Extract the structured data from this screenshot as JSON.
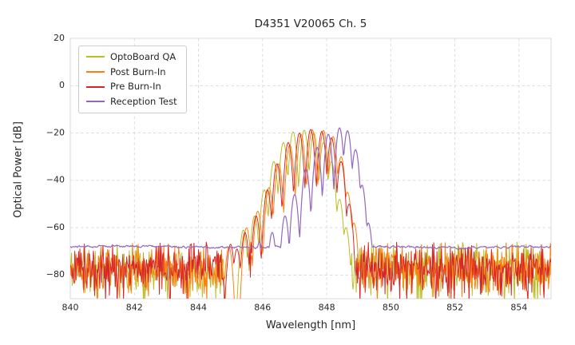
{
  "chart_data": {
    "type": "line",
    "title": "D4351 V20065 Ch. 5",
    "xlabel": "Wavelength [nm]",
    "ylabel": "Optical Power [dB]",
    "xlim": [
      840,
      855
    ],
    "ylim": [
      -90,
      20
    ],
    "xticks": [
      840,
      842,
      844,
      846,
      848,
      850,
      852,
      854
    ],
    "yticks": [
      20,
      0,
      -20,
      -40,
      -60,
      -80
    ],
    "grid": true,
    "grid_color": "#d4d9de",
    "background": "#ffffff",
    "legend_position": "upper-left",
    "sample_step_nm": 0.02,
    "mode_width_coeff_db_per_nm2": 800,
    "quiet_band_nm": [
      844.8,
      845.35
    ],
    "series": [
      {
        "name": "OptoBoard QA",
        "color": "#bcbd22",
        "peak_nm": 847.3,
        "peak_db": -18.8,
        "modes": [
          [
            845.4,
            -61
          ],
          [
            845.75,
            -55
          ],
          [
            846.05,
            -44
          ],
          [
            846.35,
            -32
          ],
          [
            846.65,
            -24
          ],
          [
            846.95,
            -19.5
          ],
          [
            847.3,
            -18.8
          ],
          [
            847.6,
            -20
          ],
          [
            847.9,
            -24
          ],
          [
            848.15,
            -32
          ],
          [
            848.4,
            -48
          ],
          [
            848.6,
            -60
          ]
        ],
        "noise": {
          "type": "spiky",
          "base_db": -77,
          "max_db": -66,
          "amp_db": 14,
          "seed": 11
        }
      },
      {
        "name": "Post Burn-In",
        "color": "#ff7f0e",
        "peak_nm": 847.55,
        "peak_db": -18.6,
        "modes": [
          [
            844.95,
            -68
          ],
          [
            845.5,
            -60
          ],
          [
            845.85,
            -53
          ],
          [
            846.2,
            -43
          ],
          [
            846.5,
            -33
          ],
          [
            846.85,
            -25
          ],
          [
            847.2,
            -20.5
          ],
          [
            847.55,
            -18.6
          ],
          [
            847.9,
            -18.9
          ],
          [
            848.2,
            -21.5
          ],
          [
            848.45,
            -30
          ],
          [
            848.65,
            -45
          ],
          [
            848.85,
            -58
          ]
        ],
        "noise": {
          "type": "spiky",
          "base_db": -77,
          "max_db": -66,
          "amp_db": 14,
          "seed": 22
        }
      },
      {
        "name": "Pre Burn-In",
        "color": "#d62728",
        "peak_nm": 847.5,
        "peak_db": -18.5,
        "modes": [
          [
            845.0,
            -67
          ],
          [
            845.2,
            -69
          ],
          [
            845.45,
            -62
          ],
          [
            845.8,
            -55
          ],
          [
            846.15,
            -44
          ],
          [
            846.45,
            -33
          ],
          [
            846.8,
            -24
          ],
          [
            847.15,
            -20
          ],
          [
            847.5,
            -18.5
          ],
          [
            847.85,
            -19.3
          ],
          [
            848.15,
            -22
          ],
          [
            848.45,
            -32
          ],
          [
            848.7,
            -50
          ]
        ],
        "noise": {
          "type": "spiky",
          "base_db": -77,
          "max_db": -66,
          "amp_db": 14,
          "seed": 33
        }
      },
      {
        "name": "Reception Test",
        "color": "#9467bd",
        "peak_nm": 848.4,
        "peak_db": -17.8,
        "modes": [
          [
            845.9,
            -66
          ],
          [
            846.3,
            -62
          ],
          [
            846.7,
            -55
          ],
          [
            847.0,
            -46
          ],
          [
            847.35,
            -35
          ],
          [
            847.7,
            -26
          ],
          [
            848.05,
            -20.5
          ],
          [
            848.4,
            -17.8
          ],
          [
            848.65,
            -19
          ],
          [
            848.9,
            -27
          ],
          [
            849.1,
            -42
          ],
          [
            849.3,
            -58
          ]
        ],
        "noise": {
          "type": "smooth",
          "base_db": -68.1,
          "amp_db": 1.1,
          "seed": 44
        }
      }
    ]
  }
}
